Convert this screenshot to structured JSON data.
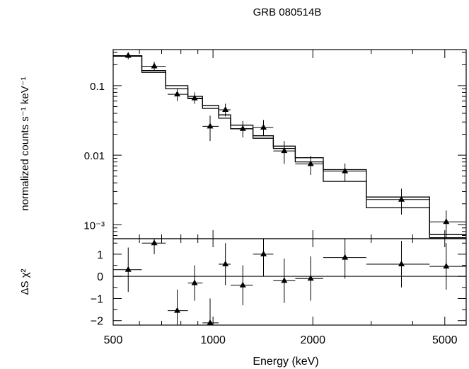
{
  "chart_data": [
    {
      "panel": "spectrum",
      "type": "scatter",
      "title": "GRB 080514B",
      "ylabel": "normalized counts s⁻¹ keV⁻¹",
      "xscale": "log",
      "yscale": "log",
      "xlim": [
        500,
        5800
      ],
      "ylim": [
        0.00063,
        0.33
      ],
      "yticks": [
        {
          "value": 0.001,
          "label": "10⁻³"
        },
        {
          "value": 0.01,
          "label": "0.01"
        },
        {
          "value": 0.1,
          "label": "0.1"
        }
      ],
      "points": [
        {
          "x": 555,
          "xlo": 500,
          "xhi": 610,
          "y": 0.27,
          "ylo": 0.24,
          "yhi": 0.3
        },
        {
          "x": 665,
          "xlo": 610,
          "xhi": 720,
          "y": 0.19,
          "ylo": 0.165,
          "yhi": 0.22
        },
        {
          "x": 780,
          "xlo": 730,
          "xhi": 840,
          "y": 0.075,
          "ylo": 0.06,
          "yhi": 0.092
        },
        {
          "x": 880,
          "xlo": 840,
          "xhi": 930,
          "y": 0.066,
          "ylo": 0.055,
          "yhi": 0.08
        },
        {
          "x": 980,
          "xlo": 930,
          "xhi": 1040,
          "y": 0.026,
          "ylo": 0.016,
          "yhi": 0.037
        },
        {
          "x": 1090,
          "xlo": 1040,
          "xhi": 1130,
          "y": 0.045,
          "ylo": 0.036,
          "yhi": 0.055
        },
        {
          "x": 1230,
          "xlo": 1130,
          "xhi": 1320,
          "y": 0.024,
          "ylo": 0.018,
          "yhi": 0.031
        },
        {
          "x": 1420,
          "xlo": 1320,
          "xhi": 1520,
          "y": 0.025,
          "ylo": 0.019,
          "yhi": 0.032
        },
        {
          "x": 1640,
          "xlo": 1520,
          "xhi": 1770,
          "y": 0.0115,
          "ylo": 0.0075,
          "yhi": 0.016
        },
        {
          "x": 1970,
          "xlo": 1770,
          "xhi": 2150,
          "y": 0.0075,
          "ylo": 0.0052,
          "yhi": 0.0098
        },
        {
          "x": 2500,
          "xlo": 2150,
          "xhi": 2900,
          "y": 0.0059,
          "ylo": 0.0042,
          "yhi": 0.0076
        },
        {
          "x": 3700,
          "xlo": 2900,
          "xhi": 4500,
          "y": 0.0023,
          "ylo": 0.0014,
          "yhi": 0.0033
        },
        {
          "x": 5050,
          "xlo": 4500,
          "xhi": 5800,
          "y": 0.0011,
          "ylo": 0.00062,
          "yhi": 0.0016
        }
      ],
      "models": [
        {
          "edges": [
            500,
            610,
            720,
            840,
            930,
            1040,
            1130,
            1320,
            1520,
            1770,
            2150,
            2900,
            4500,
            5800
          ],
          "values": [
            0.265,
            0.165,
            0.1,
            0.07,
            0.052,
            0.038,
            0.027,
            0.019,
            0.0135,
            0.0092,
            0.0062,
            0.0025,
            0.00072
          ]
        },
        {
          "edges": [
            500,
            610,
            720,
            840,
            930,
            1040,
            1130,
            1320,
            1520,
            1770,
            2150,
            2900,
            4500,
            5800
          ],
          "values": [
            0.27,
            0.155,
            0.09,
            0.065,
            0.047,
            0.034,
            0.024,
            0.0175,
            0.0125,
            0.008,
            0.0042,
            0.00175,
            0.00065
          ]
        }
      ]
    },
    {
      "panel": "residuals",
      "type": "scatter",
      "xlabel": "Energy (keV)",
      "ylabel": "ΔS χ²",
      "xscale": "log",
      "xlim": [
        500,
        5800
      ],
      "ylim": [
        -2.2,
        1.7
      ],
      "xticks": [
        500,
        1000,
        2000,
        5000
      ],
      "yticks": [
        -2,
        -1,
        0,
        1
      ],
      "zero_line": true,
      "points": [
        {
          "x": 555,
          "xlo": 500,
          "xhi": 610,
          "y": 0.3,
          "ylo": -0.7,
          "yhi": 1.3
        },
        {
          "x": 665,
          "xlo": 610,
          "xhi": 720,
          "y": 1.5,
          "ylo": 1.0,
          "yhi": 1.7
        },
        {
          "x": 780,
          "xlo": 730,
          "xhi": 840,
          "y": -1.55,
          "ylo": -2.2,
          "yhi": -0.6
        },
        {
          "x": 880,
          "xlo": 840,
          "xhi": 930,
          "y": -0.3,
          "ylo": -1.1,
          "yhi": 0.5
        },
        {
          "x": 980,
          "xlo": 930,
          "xhi": 1040,
          "y": -2.1,
          "ylo": -2.2,
          "yhi": -1.0
        },
        {
          "x": 1090,
          "xlo": 1040,
          "xhi": 1130,
          "y": 0.55,
          "ylo": -0.4,
          "yhi": 1.5
        },
        {
          "x": 1230,
          "xlo": 1130,
          "xhi": 1320,
          "y": -0.4,
          "ylo": -1.3,
          "yhi": 0.5
        },
        {
          "x": 1420,
          "xlo": 1320,
          "xhi": 1520,
          "y": 1.0,
          "ylo": 0.0,
          "yhi": 1.7
        },
        {
          "x": 1640,
          "xlo": 1520,
          "xhi": 1770,
          "y": -0.2,
          "ylo": -1.2,
          "yhi": 0.8
        },
        {
          "x": 1970,
          "xlo": 1770,
          "xhi": 2150,
          "y": -0.1,
          "ylo": -1.1,
          "yhi": 0.9
        },
        {
          "x": 2500,
          "xlo": 2150,
          "xhi": 2900,
          "y": 0.85,
          "ylo": -0.1,
          "yhi": 1.7
        },
        {
          "x": 3700,
          "xlo": 2900,
          "xhi": 4500,
          "y": 0.55,
          "ylo": -0.5,
          "yhi": 1.6
        },
        {
          "x": 5050,
          "xlo": 4500,
          "xhi": 5800,
          "y": 0.45,
          "ylo": -0.6,
          "yhi": 1.5
        }
      ]
    }
  ]
}
